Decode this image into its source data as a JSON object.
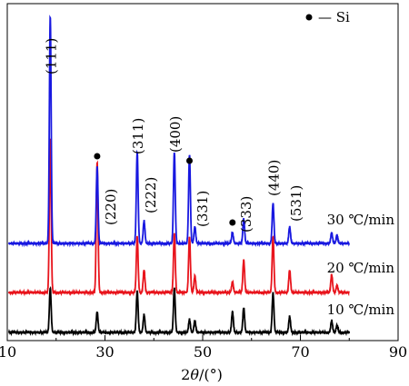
{
  "chart_data": {
    "type": "line",
    "xlabel_main": "2",
    "xlabel_italic": "θ",
    "xlabel_unit": "/(°)",
    "xlim": [
      10,
      90
    ],
    "x_ticks": [
      10,
      30,
      50,
      70,
      90
    ],
    "x_tick_labels": [
      "10",
      "30",
      "50",
      "70",
      "90"
    ],
    "y_ticks_visible": false,
    "legend": {
      "marker": "circle",
      "label": "— Si",
      "position": "top-right"
    },
    "series": [
      {
        "name": "10 ℃/min",
        "color": "#000000",
        "peaks": [
          [
            18.8,
            0.75
          ],
          [
            28.4,
            0.35
          ],
          [
            36.6,
            0.7
          ],
          [
            38.0,
            0.3
          ],
          [
            44.2,
            0.75
          ],
          [
            47.3,
            0.22
          ],
          [
            48.4,
            0.2
          ],
          [
            56.1,
            0.35
          ],
          [
            58.4,
            0.42
          ],
          [
            64.4,
            0.67
          ],
          [
            67.8,
            0.27
          ],
          [
            76.4,
            0.2
          ],
          [
            77.5,
            0.12
          ]
        ]
      },
      {
        "name": "20 ℃/min",
        "color": "#e8141c",
        "peaks": [
          [
            18.8,
            2.6
          ],
          [
            28.4,
            2.2
          ],
          [
            36.6,
            0.95
          ],
          [
            38.0,
            0.38
          ],
          [
            44.2,
            1.0
          ],
          [
            47.3,
            0.95
          ],
          [
            48.4,
            0.28
          ],
          [
            56.1,
            0.18
          ],
          [
            58.4,
            0.55
          ],
          [
            64.4,
            0.95
          ],
          [
            67.8,
            0.38
          ],
          [
            76.4,
            0.3
          ],
          [
            77.5,
            0.12
          ]
        ]
      },
      {
        "name": "30 ℃/min",
        "color": "#1818e0",
        "peaks": [
          [
            18.8,
            3.85
          ],
          [
            28.4,
            1.3
          ],
          [
            36.6,
            1.55
          ],
          [
            38.0,
            0.38
          ],
          [
            44.2,
            1.55
          ],
          [
            47.3,
            1.5
          ],
          [
            48.4,
            0.28
          ],
          [
            56.1,
            0.18
          ],
          [
            58.4,
            0.42
          ],
          [
            64.4,
            0.68
          ],
          [
            67.8,
            0.28
          ],
          [
            76.4,
            0.18
          ],
          [
            77.5,
            0.14
          ]
        ]
      }
    ],
    "peak_labels": [
      {
        "text": "(111)",
        "x": 18.8
      },
      {
        "text": "(220)",
        "x": 31.0
      },
      {
        "text": "(311)",
        "x": 36.6
      },
      {
        "text": "(222)",
        "x": 39.2
      },
      {
        "text": "(400)",
        "x": 44.2
      },
      {
        "text": "(331)",
        "x": 49.8
      },
      {
        "text": "(333)",
        "x": 58.7
      },
      {
        "text": "(440)",
        "x": 64.4
      },
      {
        "text": "(531)",
        "x": 69.0
      }
    ],
    "si_markers_x": [
      28.4,
      47.3,
      56.1
    ]
  }
}
